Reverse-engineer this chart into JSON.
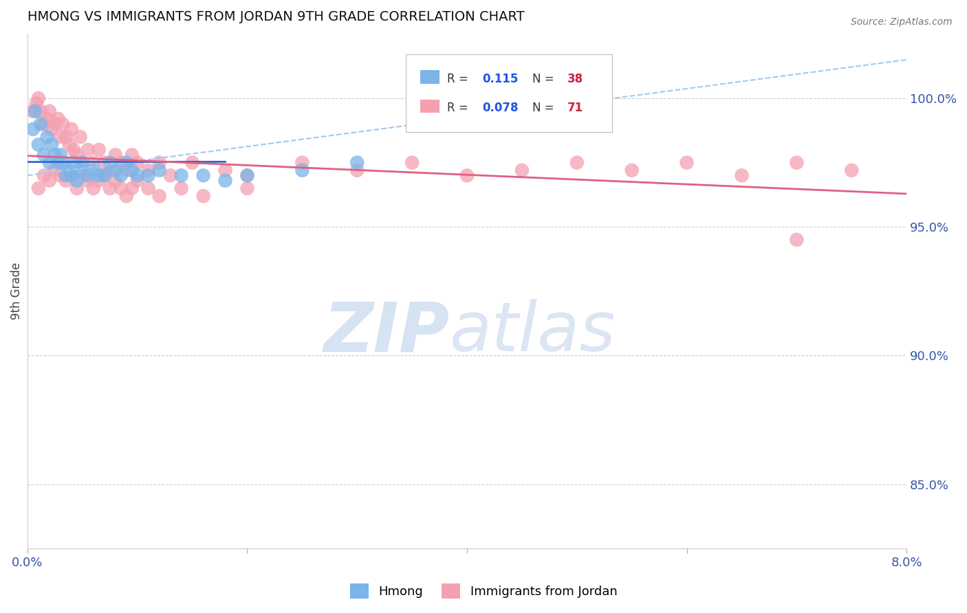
{
  "title": "HMONG VS IMMIGRANTS FROM JORDAN 9TH GRADE CORRELATION CHART",
  "source": "Source: ZipAtlas.com",
  "ylabel": "9th Grade",
  "xlim": [
    0.0,
    8.0
  ],
  "ylim": [
    82.5,
    102.5
  ],
  "ytick_labels": [
    "85.0%",
    "90.0%",
    "95.0%",
    "100.0%"
  ],
  "ytick_values": [
    85.0,
    90.0,
    95.0,
    100.0
  ],
  "background_color": "#ffffff",
  "hmong_color": "#7ab4e8",
  "jordan_color": "#f4a0b0",
  "hmong_line_color": "#3366cc",
  "jordan_line_color": "#e06080",
  "hmong_dashed_color": "#a0c8f0",
  "grid_color": "#cccccc",
  "hmong_x": [
    0.05,
    0.07,
    0.1,
    0.12,
    0.15,
    0.18,
    0.2,
    0.22,
    0.25,
    0.28,
    0.3,
    0.32,
    0.35,
    0.38,
    0.4,
    0.42,
    0.45,
    0.48,
    0.5,
    0.55,
    0.6,
    0.65,
    0.7,
    0.75,
    0.8,
    0.85,
    0.9,
    0.95,
    1.0,
    1.1,
    1.2,
    1.4,
    1.6,
    1.8,
    2.0,
    2.5,
    3.0,
    4.5
  ],
  "hmong_y": [
    98.8,
    99.5,
    98.2,
    99.0,
    97.8,
    98.5,
    97.5,
    98.2,
    97.8,
    97.5,
    97.8,
    97.5,
    97.0,
    97.2,
    97.0,
    97.5,
    96.8,
    97.2,
    97.5,
    97.0,
    97.2,
    97.0,
    97.0,
    97.5,
    97.2,
    97.0,
    97.5,
    97.2,
    97.0,
    97.0,
    97.2,
    97.0,
    97.0,
    96.8,
    97.0,
    97.2,
    97.5,
    99.5
  ],
  "jordan_x": [
    0.05,
    0.08,
    0.1,
    0.12,
    0.15,
    0.18,
    0.2,
    0.22,
    0.25,
    0.28,
    0.3,
    0.32,
    0.35,
    0.38,
    0.4,
    0.42,
    0.45,
    0.48,
    0.5,
    0.55,
    0.6,
    0.65,
    0.7,
    0.75,
    0.8,
    0.85,
    0.9,
    0.95,
    1.0,
    1.1,
    1.2,
    1.3,
    1.5,
    1.8,
    2.0,
    2.5,
    3.0,
    3.5,
    4.0,
    4.5,
    5.0,
    5.5,
    6.0,
    6.5,
    7.0,
    7.5,
    0.1,
    0.15,
    0.2,
    0.25,
    0.3,
    0.35,
    0.4,
    0.45,
    0.5,
    0.55,
    0.6,
    0.65,
    0.7,
    0.75,
    0.8,
    0.85,
    0.9,
    0.95,
    1.0,
    1.1,
    1.2,
    1.4,
    1.6,
    2.0,
    7.0
  ],
  "jordan_y": [
    99.5,
    99.8,
    100.0,
    99.5,
    99.0,
    99.2,
    99.5,
    98.8,
    99.0,
    99.2,
    98.5,
    99.0,
    98.5,
    98.2,
    98.8,
    98.0,
    97.8,
    98.5,
    97.5,
    98.0,
    97.5,
    98.0,
    97.5,
    97.2,
    97.8,
    97.5,
    97.2,
    97.8,
    97.5,
    97.2,
    97.5,
    97.0,
    97.5,
    97.2,
    97.0,
    97.5,
    97.2,
    97.5,
    97.0,
    97.2,
    97.5,
    97.2,
    97.5,
    97.0,
    97.5,
    97.2,
    96.5,
    97.0,
    96.8,
    97.2,
    97.0,
    96.8,
    97.0,
    96.5,
    97.0,
    96.8,
    96.5,
    96.8,
    97.0,
    96.5,
    96.8,
    96.5,
    96.2,
    96.5,
    96.8,
    96.5,
    96.2,
    96.5,
    96.2,
    96.5,
    94.5
  ]
}
